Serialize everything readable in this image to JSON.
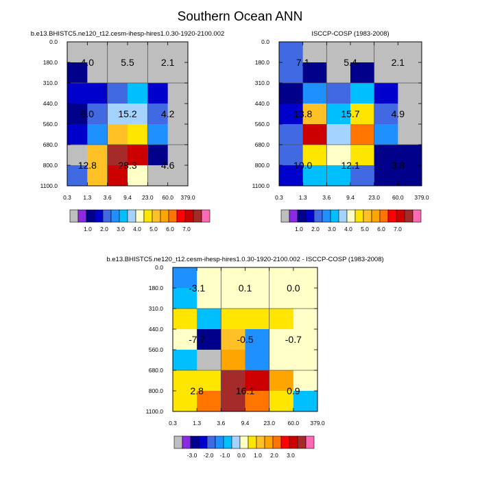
{
  "title": "Southern Ocean ANN",
  "chart_data": [
    {
      "type": "heatmap",
      "title": "b.e13.BHISTC5.ne120_t12.cesm-ihesp-hires1.0.30-1920-2100.002",
      "x_ticks": [
        "0.3",
        "1.3",
        "3.6",
        "9.4",
        "23.0",
        "60.0",
        "379.0"
      ],
      "y_ticks": [
        "0.0",
        "180.0",
        "310.0",
        "440.0",
        "560.0",
        "680.0",
        "800.0",
        "1100.0"
      ],
      "cells": [
        [
          -1,
          -1,
          -1,
          -1,
          -1,
          -1
        ],
        [
          0.75,
          -1,
          -1,
          -1,
          -1,
          -1
        ],
        [
          1.25,
          1.25,
          1.75,
          2.75,
          1.25,
          -1
        ],
        [
          0.75,
          1.75,
          3.25,
          3.25,
          1.75,
          -1
        ],
        [
          1.25,
          2.25,
          4.75,
          4.25,
          2.25,
          -1
        ],
        [
          -1,
          4.75,
          7.25,
          6.75,
          0.75,
          -1
        ],
        [
          1.75,
          4.75,
          6.75,
          3.75,
          -1,
          -1
        ]
      ],
      "block_labels": [
        [
          "4.0",
          "5.5",
          "2.1"
        ],
        [
          "6.0",
          "15.2",
          "4.2"
        ],
        [
          "12.8",
          "28.3",
          "4.6"
        ]
      ],
      "colorbar": {
        "labels": [
          "1.0",
          "2.0",
          "3.0",
          "4.0",
          "5.0",
          "6.0",
          "7.0"
        ],
        "colors": [
          "#bebebe",
          "#8a2be2",
          "#00008b",
          "#0000cd",
          "#4169e1",
          "#1e90ff",
          "#00bfff",
          "#a4d3ff",
          "#ffffc8",
          "#ffe600",
          "#ffc125",
          "#ffa500",
          "#ff7500",
          "#ff0000",
          "#cd0000",
          "#a52a2a",
          "#ff69b4"
        ],
        "boundaries": [
          -0.1,
          0.5,
          1,
          1.5,
          2,
          2.5,
          3,
          3.5,
          4,
          4.5,
          5,
          5.5,
          6,
          6.5,
          7,
          7.5
        ]
      }
    },
    {
      "type": "heatmap",
      "title": "ISCCP-COSP (1983-2008)",
      "x_ticks": [
        "0.3",
        "1.3",
        "3.6",
        "9.4",
        "23.0",
        "60.0",
        "379.0"
      ],
      "y_ticks": [
        "0.0",
        "180.0",
        "310.0",
        "440.0",
        "560.0",
        "680.0",
        "800.0",
        "1100.0"
      ],
      "cells": [
        [
          1.75,
          -1,
          -1,
          -1,
          -1,
          -1
        ],
        [
          1.75,
          0.75,
          -1,
          0.75,
          -1,
          -1
        ],
        [
          0.75,
          2.25,
          1.75,
          2.75,
          1.25,
          -1
        ],
        [
          1.25,
          4.75,
          2.75,
          4.25,
          1.75,
          -1
        ],
        [
          1.75,
          6.75,
          3.25,
          5.75,
          2.25,
          -1
        ],
        [
          1.75,
          4.25,
          3.75,
          4.25,
          0.75,
          0.75
        ],
        [
          1.25,
          2.75,
          2.75,
          1.75,
          0.75,
          0.75
        ]
      ],
      "block_labels": [
        [
          "7.1",
          "5.4",
          "2.1"
        ],
        [
          "13.8",
          "15.7",
          "4.9"
        ],
        [
          "10.0",
          "12.1",
          "3.8"
        ]
      ],
      "colorbar": {
        "labels": [
          "1.0",
          "2.0",
          "3.0",
          "4.0",
          "5.0",
          "6.0",
          "7.0"
        ],
        "colors": [
          "#bebebe",
          "#8a2be2",
          "#00008b",
          "#0000cd",
          "#4169e1",
          "#1e90ff",
          "#00bfff",
          "#a4d3ff",
          "#ffffc8",
          "#ffe600",
          "#ffc125",
          "#ffa500",
          "#ff7500",
          "#ff0000",
          "#cd0000",
          "#a52a2a",
          "#ff69b4"
        ],
        "boundaries": [
          -0.1,
          0.5,
          1,
          1.5,
          2,
          2.5,
          3,
          3.5,
          4,
          4.5,
          5,
          5.5,
          6,
          6.5,
          7,
          7.5
        ]
      }
    },
    {
      "type": "heatmap",
      "title": "b.e13.BHISTC5.ne120_t12.cesm-ihesp-hires1.0.30-1920-2100.002 - ISCCP-COSP (1983-2008)",
      "x_ticks": [
        "0.3",
        "1.3",
        "3.6",
        "9.4",
        "23.0",
        "60.0",
        "379.0"
      ],
      "y_ticks": [
        "0.0",
        "180.0",
        "310.0",
        "440.0",
        "560.0",
        "680.0",
        "800.0",
        "1100.0"
      ],
      "cells": [
        [
          -1.75,
          -0.25,
          -0.25,
          -0.25,
          -0.25,
          -0.25
        ],
        [
          -1.25,
          -0.25,
          -0.25,
          -0.25,
          -0.25,
          -0.25
        ],
        [
          0.25,
          -1.25,
          0.25,
          0.25,
          0.25,
          -0.25
        ],
        [
          -0.25,
          -3.25,
          0.75,
          -1.75,
          -0.25,
          -0.25
        ],
        [
          -1.25,
          -4.5,
          1.25,
          -1.75,
          -0.25,
          -0.25
        ],
        [
          0.25,
          0.25,
          3.25,
          2.75,
          1.25,
          -0.25
        ],
        [
          0.25,
          1.75,
          3.25,
          1.75,
          0.25,
          -1.25
        ]
      ],
      "block_labels": [
        [
          "-3.1",
          "0.1",
          "0.0"
        ],
        [
          "-7.7",
          "-0.5",
          "-0.7"
        ],
        [
          "2.8",
          "16.1",
          "0.9"
        ]
      ],
      "colorbar": {
        "labels": [
          "-3.0",
          "-2.0",
          "-1.0",
          "0.0",
          "1.0",
          "2.0",
          "3.0"
        ],
        "colors": [
          "#bebebe",
          "#8a2be2",
          "#00008b",
          "#0000cd",
          "#4169e1",
          "#1e90ff",
          "#00bfff",
          "#a4d3ff",
          "#ffffc8",
          "#ffe600",
          "#ffc125",
          "#ffa500",
          "#ff7500",
          "#ff0000",
          "#cd0000",
          "#a52a2a",
          "#ff69b4"
        ],
        "boundaries": [
          -4,
          -3.5,
          -3,
          -2.5,
          -2,
          -1.5,
          -1,
          -0.5,
          0,
          0.5,
          1,
          1.5,
          2,
          2.5,
          3,
          3.5
        ]
      }
    }
  ]
}
